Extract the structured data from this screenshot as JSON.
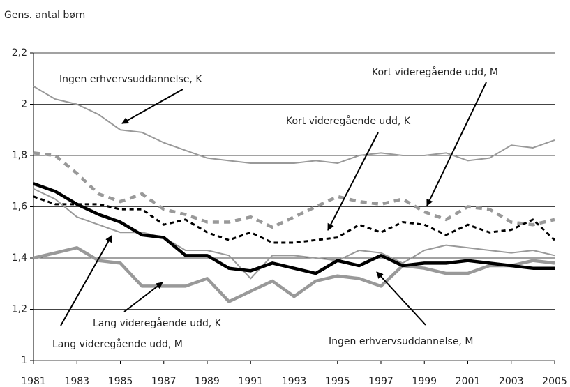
{
  "chart_data": {
    "type": "line",
    "y_label": "Gens. antal børn",
    "x": [
      1981,
      1982,
      1983,
      1984,
      1985,
      1986,
      1987,
      1988,
      1989,
      1990,
      1991,
      1992,
      1993,
      1994,
      1995,
      1996,
      1997,
      1998,
      1999,
      2000,
      2001,
      2002,
      2003,
      2004,
      2005
    ],
    "xlim": [
      1981,
      2005
    ],
    "xticks": [
      1981,
      1983,
      1985,
      1987,
      1989,
      1991,
      1993,
      1995,
      1997,
      1999,
      2001,
      2003,
      2005
    ],
    "ylim": [
      1,
      2.2
    ],
    "yticks": [
      1,
      {
        "value": 1.2,
        "label": "1,2"
      },
      {
        "value": 1.4,
        "label": "1,4"
      },
      {
        "value": 1.6,
        "label": "1,6"
      },
      {
        "value": 1.8,
        "label": "1,8"
      },
      2,
      {
        "value": 2.2,
        "label": "2,2"
      }
    ],
    "grid": true,
    "series": [
      {
        "color": "#999999",
        "weight": "thin",
        "dashed": false,
        "values": [
          2.07,
          2.02,
          2.0,
          1.96,
          1.9,
          1.89,
          1.85,
          1.82,
          1.79,
          1.78,
          1.77,
          1.77,
          1.77,
          1.78,
          1.77,
          1.8,
          1.81,
          1.8,
          1.8,
          1.81,
          1.78,
          1.79,
          1.84,
          1.83,
          1.86
        ]
      },
      {
        "color": "#999999",
        "weight": "thick",
        "dashed": true,
        "values": [
          1.81,
          1.8,
          1.73,
          1.65,
          1.62,
          1.65,
          1.59,
          1.57,
          1.54,
          1.54,
          1.56,
          1.52,
          1.56,
          1.6,
          1.64,
          1.62,
          1.61,
          1.63,
          1.58,
          1.55,
          1.6,
          1.59,
          1.54,
          1.53,
          1.55
        ]
      },
      {
        "color": "#000000",
        "weight": "medium",
        "dashed": true,
        "values": [
          1.64,
          1.61,
          1.61,
          1.61,
          1.59,
          1.59,
          1.53,
          1.55,
          1.5,
          1.47,
          1.5,
          1.46,
          1.46,
          1.47,
          1.48,
          1.53,
          1.5,
          1.54,
          1.53,
          1.49,
          1.53,
          1.5,
          1.51,
          1.55,
          1.47
        ]
      },
      {
        "color": "#999999",
        "weight": "thin",
        "dashed": false,
        "values": [
          1.67,
          1.63,
          1.56,
          1.53,
          1.5,
          1.5,
          1.48,
          1.43,
          1.43,
          1.41,
          1.32,
          1.41,
          1.41,
          1.4,
          1.39,
          1.43,
          1.42,
          1.38,
          1.43,
          1.45,
          1.44,
          1.43,
          1.42,
          1.43,
          1.41
        ]
      },
      {
        "color": "#999999",
        "weight": "thick",
        "dashed": false,
        "values": [
          1.4,
          1.42,
          1.44,
          1.39,
          1.38,
          1.29,
          1.29,
          1.29,
          1.32,
          1.23,
          1.27,
          1.31,
          1.25,
          1.31,
          1.33,
          1.32,
          1.29,
          1.37,
          1.36,
          1.34,
          1.34,
          1.37,
          1.37,
          1.39,
          1.38
        ]
      },
      {
        "color": "#000000",
        "weight": "thick",
        "dashed": false,
        "values": [
          1.69,
          1.66,
          1.61,
          1.57,
          1.54,
          1.49,
          1.48,
          1.41,
          1.41,
          1.36,
          1.35,
          1.38,
          1.36,
          1.34,
          1.39,
          1.37,
          1.41,
          1.37,
          1.38,
          1.38,
          1.39,
          1.38,
          1.37,
          1.36,
          1.36
        ]
      }
    ],
    "annotations": [
      "Ingen erhvervsuddannelse, K",
      "Kort videregående udd, M",
      "Kort videregående udd, K",
      "Lang videregående udd, K",
      "Lang videregående udd, M",
      "Ingen erhvervsuddannelse, M"
    ]
  }
}
